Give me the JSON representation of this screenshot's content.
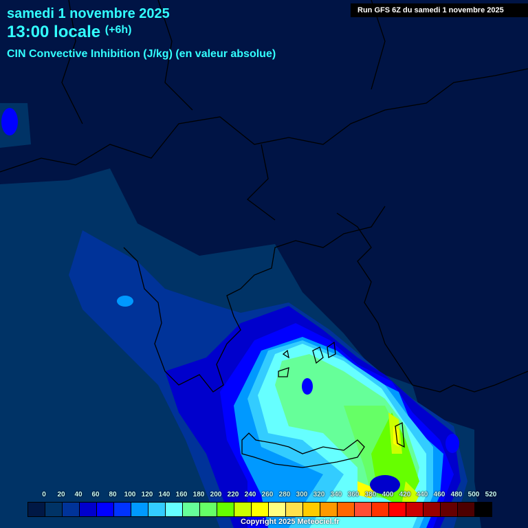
{
  "header": {
    "date": "samedi 1 novembre 2025",
    "time": "13:00 locale",
    "offset": "(+6h)",
    "parameter": "CIN Convective Inhibition (J/kg) (en valeur absolue)",
    "run": "Run GFS 6Z du samedi 1 novembre 2025"
  },
  "legend": {
    "labels": [
      "0",
      "20",
      "40",
      "60",
      "80",
      "100",
      "120",
      "140",
      "160",
      "180",
      "200",
      "220",
      "240",
      "260",
      "280",
      "300",
      "320",
      "340",
      "360",
      "380",
      "400",
      "420",
      "440",
      "460",
      "480",
      "500",
      "520"
    ],
    "colors": [
      "#001845",
      "#003366",
      "#003399",
      "#0000cc",
      "#0000ff",
      "#0033ff",
      "#0099ff",
      "#33ccff",
      "#66ffff",
      "#66ff99",
      "#66ff66",
      "#66ff00",
      "#ccff00",
      "#ffff00",
      "#ffff80",
      "#ffe14d",
      "#ffcc00",
      "#ff9900",
      "#ff6600",
      "#ff4d33",
      "#ff3300",
      "#ff0000",
      "#cc0000",
      "#990000",
      "#660000",
      "#4d0000",
      "#000000"
    ]
  },
  "footer": {
    "copyright": "Copyright 2025 Meteociel.fr"
  }
}
